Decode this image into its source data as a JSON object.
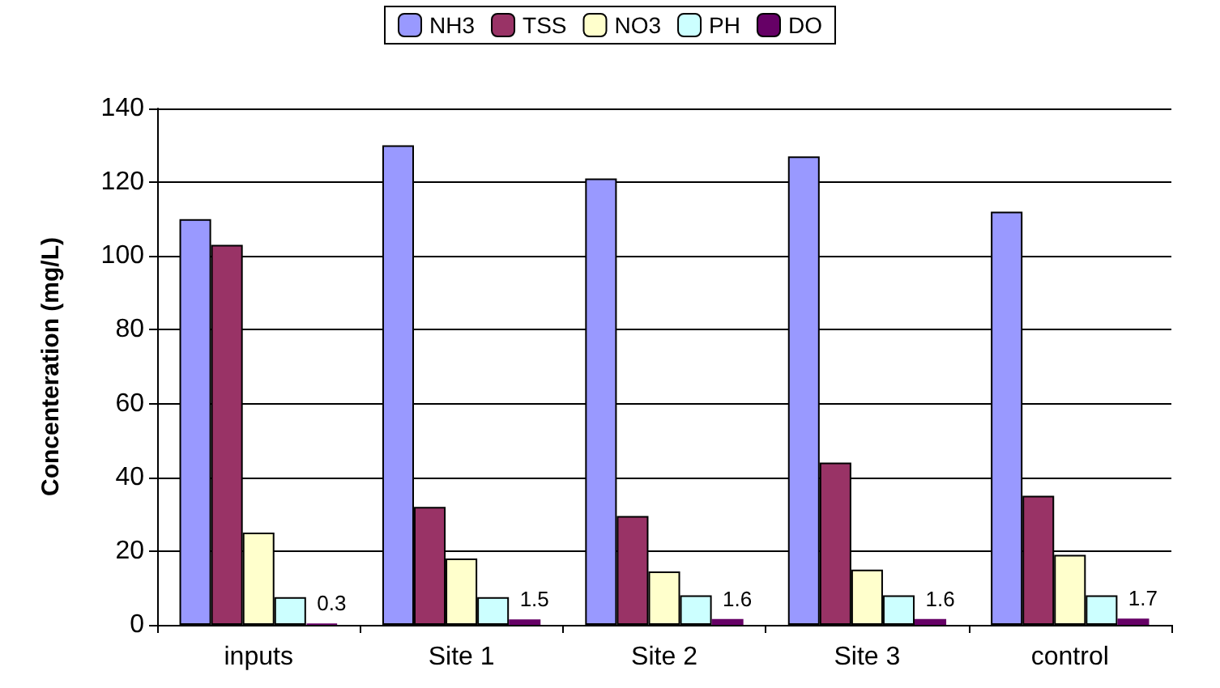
{
  "chart_data": {
    "type": "bar",
    "ylabel": "Concenteration (mg/L)",
    "categories": [
      "inputs",
      "Site 1",
      "Site 2",
      "Site 3",
      "control"
    ],
    "series": [
      {
        "name": "NH3",
        "color": "#9999ff",
        "values": [
          110,
          130,
          121,
          127,
          112
        ]
      },
      {
        "name": "TSS",
        "color": "#993366",
        "values": [
          103,
          32,
          29.5,
          44,
          35
        ]
      },
      {
        "name": "NO3",
        "color": "#ffffcc",
        "values": [
          25,
          18,
          14.5,
          15,
          19
        ]
      },
      {
        "name": "PH",
        "color": "#ccffff",
        "values": [
          7.5,
          7.5,
          8,
          8,
          8
        ]
      },
      {
        "name": "DO",
        "color": "#660066",
        "values": [
          0.3,
          1.5,
          1.6,
          1.6,
          1.7
        ],
        "value_labels": [
          "0.3",
          "1.5",
          "1.6",
          "1.6",
          "1.7"
        ]
      }
    ],
    "ylim": [
      0,
      140
    ],
    "yticks": [
      0,
      20,
      40,
      60,
      80,
      100,
      120,
      140
    ],
    "grid": "y",
    "legend": "top"
  }
}
